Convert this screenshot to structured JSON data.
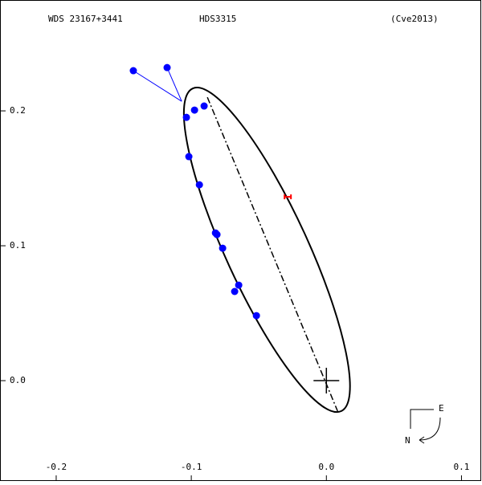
{
  "chart_data": {
    "type": "scatter",
    "title": "WDS 23167+3441",
    "subtitle": "HDS3315",
    "annotation": "(Cve2013)",
    "compass": {
      "east": "E",
      "north": "N"
    },
    "xlim": [
      -0.241,
      0.114
    ],
    "ylim": [
      -0.0738,
      0.2816
    ],
    "xticks": [
      -0.2,
      -0.1,
      {
        "value": 0,
        "label": "0.0"
      },
      0.1
    ],
    "yticks": [
      {
        "value": 0,
        "label": "0.0"
      },
      0.1,
      0.2
    ],
    "orbit": {
      "center_x": -0.044,
      "center_y": 0.097,
      "semi_major": 0.1315,
      "semi_minor": 0.0304,
      "angle_deg": -65.3,
      "color": "#000000"
    },
    "line_of_nodes": {
      "x": [
        -0.0881,
        0.0083
      ],
      "y": [
        0.2101,
        -0.0226
      ]
    },
    "primary": {
      "x": 0,
      "y": 0
    },
    "observations": {
      "color": "#0000ff",
      "x": [
        -0.1429,
        -0.1179,
        -0.0976,
        -0.0905,
        -0.1036,
        -0.1018,
        -0.094,
        -0.0821,
        -0.081,
        -0.0768,
        -0.0649,
        -0.0679,
        -0.0518
      ],
      "y": [
        0.2298,
        0.2321,
        0.2006,
        0.2036,
        0.1952,
        0.1661,
        0.1452,
        0.1095,
        0.1083,
        0.0982,
        0.0708,
        0.0661,
        0.0482
      ]
    },
    "residual_ends": {
      "x": [
        -0.1071,
        -0.1071
      ],
      "y": [
        0.2071,
        0.2071
      ]
    },
    "rejected": {
      "color": "#ff0000",
      "x": [
        -0.0286
      ],
      "y": [
        0.1363
      ]
    }
  }
}
